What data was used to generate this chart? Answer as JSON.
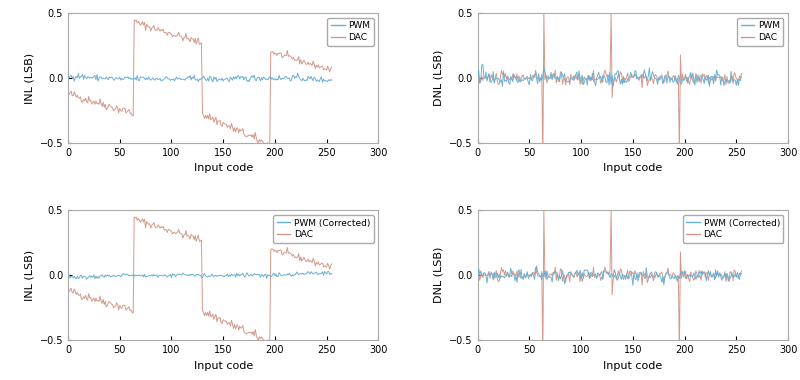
{
  "n_codes": 256,
  "xlim": [
    0,
    300
  ],
  "xticks": [
    0,
    50,
    100,
    150,
    200,
    250,
    300
  ],
  "ylim_inl": [
    -0.5,
    0.5
  ],
  "ylim_dnl": [
    -0.5,
    0.5
  ],
  "yticks": [
    -0.5,
    0,
    0.5
  ],
  "xlabel": "Input code",
  "ylabel_inl": "INL (LSB)",
  "ylabel_dnl": "DNL (LSB)",
  "pwm_color": "#6ab0d4",
  "dac_color": "#d4998a",
  "bg_color": "#ffffff",
  "legend_top_left": [
    "PWM",
    "DAC"
  ],
  "legend_bottom_left": [
    "PWM (Corrected)",
    "DAC"
  ],
  "legend_top_right": [
    "PWM",
    "DAC"
  ],
  "legend_bottom_right": [
    "PWM (Corrected)",
    "DAC"
  ]
}
